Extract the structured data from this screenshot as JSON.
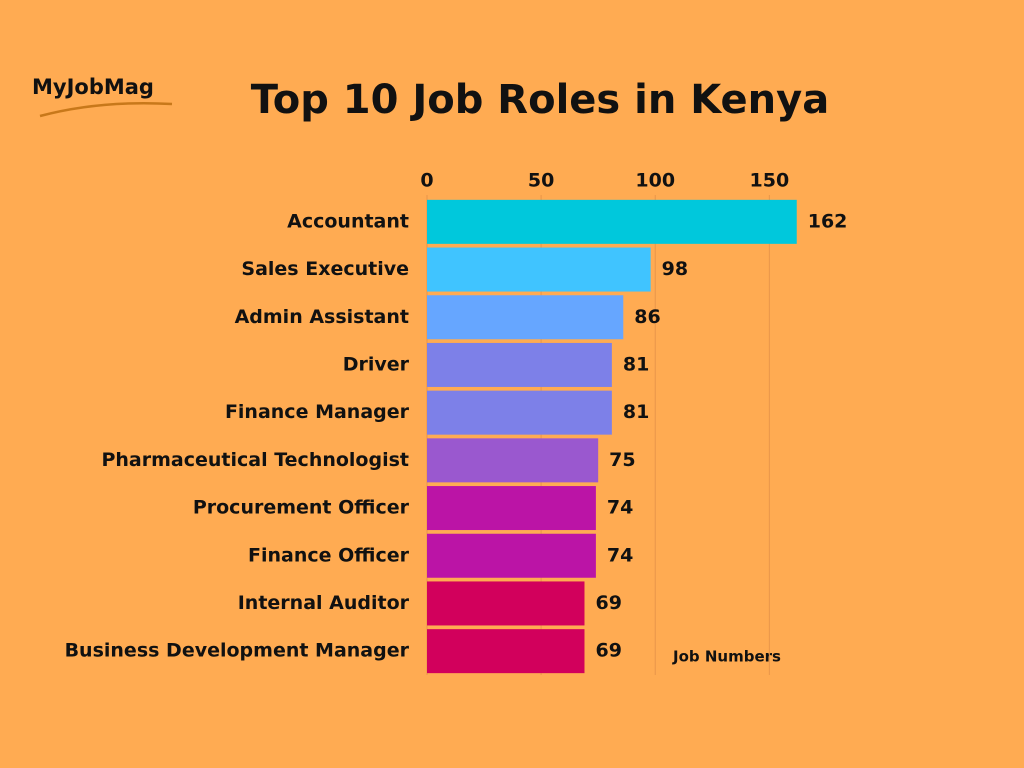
{
  "logo": "MyJobMag",
  "chart_data": {
    "type": "barh",
    "title": "Top 10 Job Roles in Kenya",
    "categories": [
      "Accountant",
      "Sales Executive",
      "Admin Assistant",
      "Driver",
      "Finance Manager",
      "Pharmaceutical Technologist",
      "Procurement Officer",
      "Finance Officer",
      "Internal Auditor",
      "Business Development Manager"
    ],
    "values": [
      162,
      98,
      86,
      81,
      81,
      75,
      74,
      74,
      69,
      69
    ],
    "colors": [
      "#00c8dc",
      "#40c4ff",
      "#66a6ff",
      "#7d80e8",
      "#7d80e8",
      "#9a58cf",
      "#bb14a6",
      "#bb14a6",
      "#d2005c",
      "#d2005c"
    ],
    "x_label": "Job Numbers",
    "xlim": [
      0,
      170
    ],
    "xticks": [
      0,
      50,
      100,
      150
    ],
    "grid": true
  }
}
